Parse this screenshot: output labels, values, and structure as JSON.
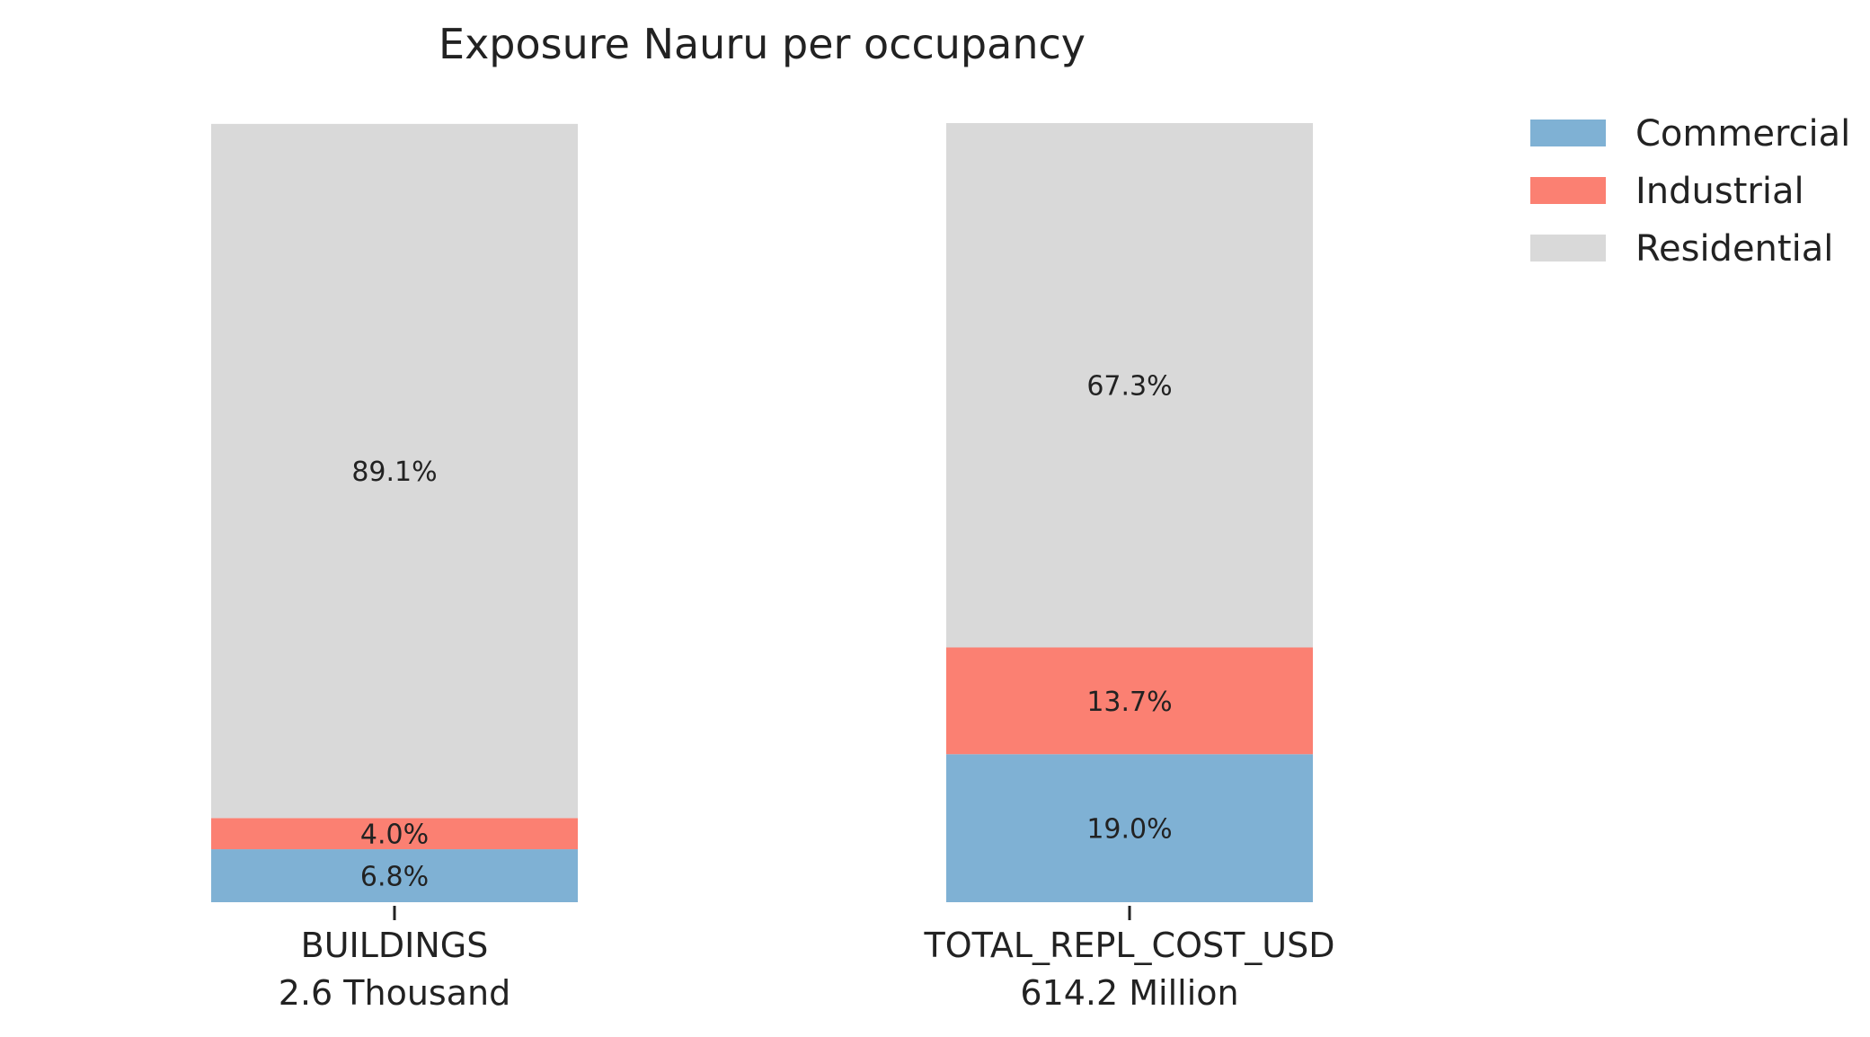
{
  "chart_data": {
    "type": "bar",
    "stacked": true,
    "normalized": true,
    "title": "Exposure Nauru per occupancy",
    "categories": [
      "BUILDINGS",
      "TOTAL_REPL_COST_USD"
    ],
    "category_totals": [
      "2.6 Thousand",
      "614.2 Million"
    ],
    "ylim": [
      0,
      100
    ],
    "grid": false,
    "legend_position": "top-right",
    "series": [
      {
        "name": "Commercial",
        "color": "#7fb1d4",
        "values": [
          6.8,
          19.0
        ],
        "labels": [
          "6.8%",
          "19.0%"
        ]
      },
      {
        "name": "Industrial",
        "color": "#fb8072",
        "values": [
          4.0,
          13.7
        ],
        "labels": [
          "4.0%",
          "13.7%"
        ]
      },
      {
        "name": "Residential",
        "color": "#d9d9d9",
        "values": [
          89.1,
          67.3
        ],
        "labels": [
          "89.1%",
          "67.3%"
        ]
      }
    ]
  }
}
